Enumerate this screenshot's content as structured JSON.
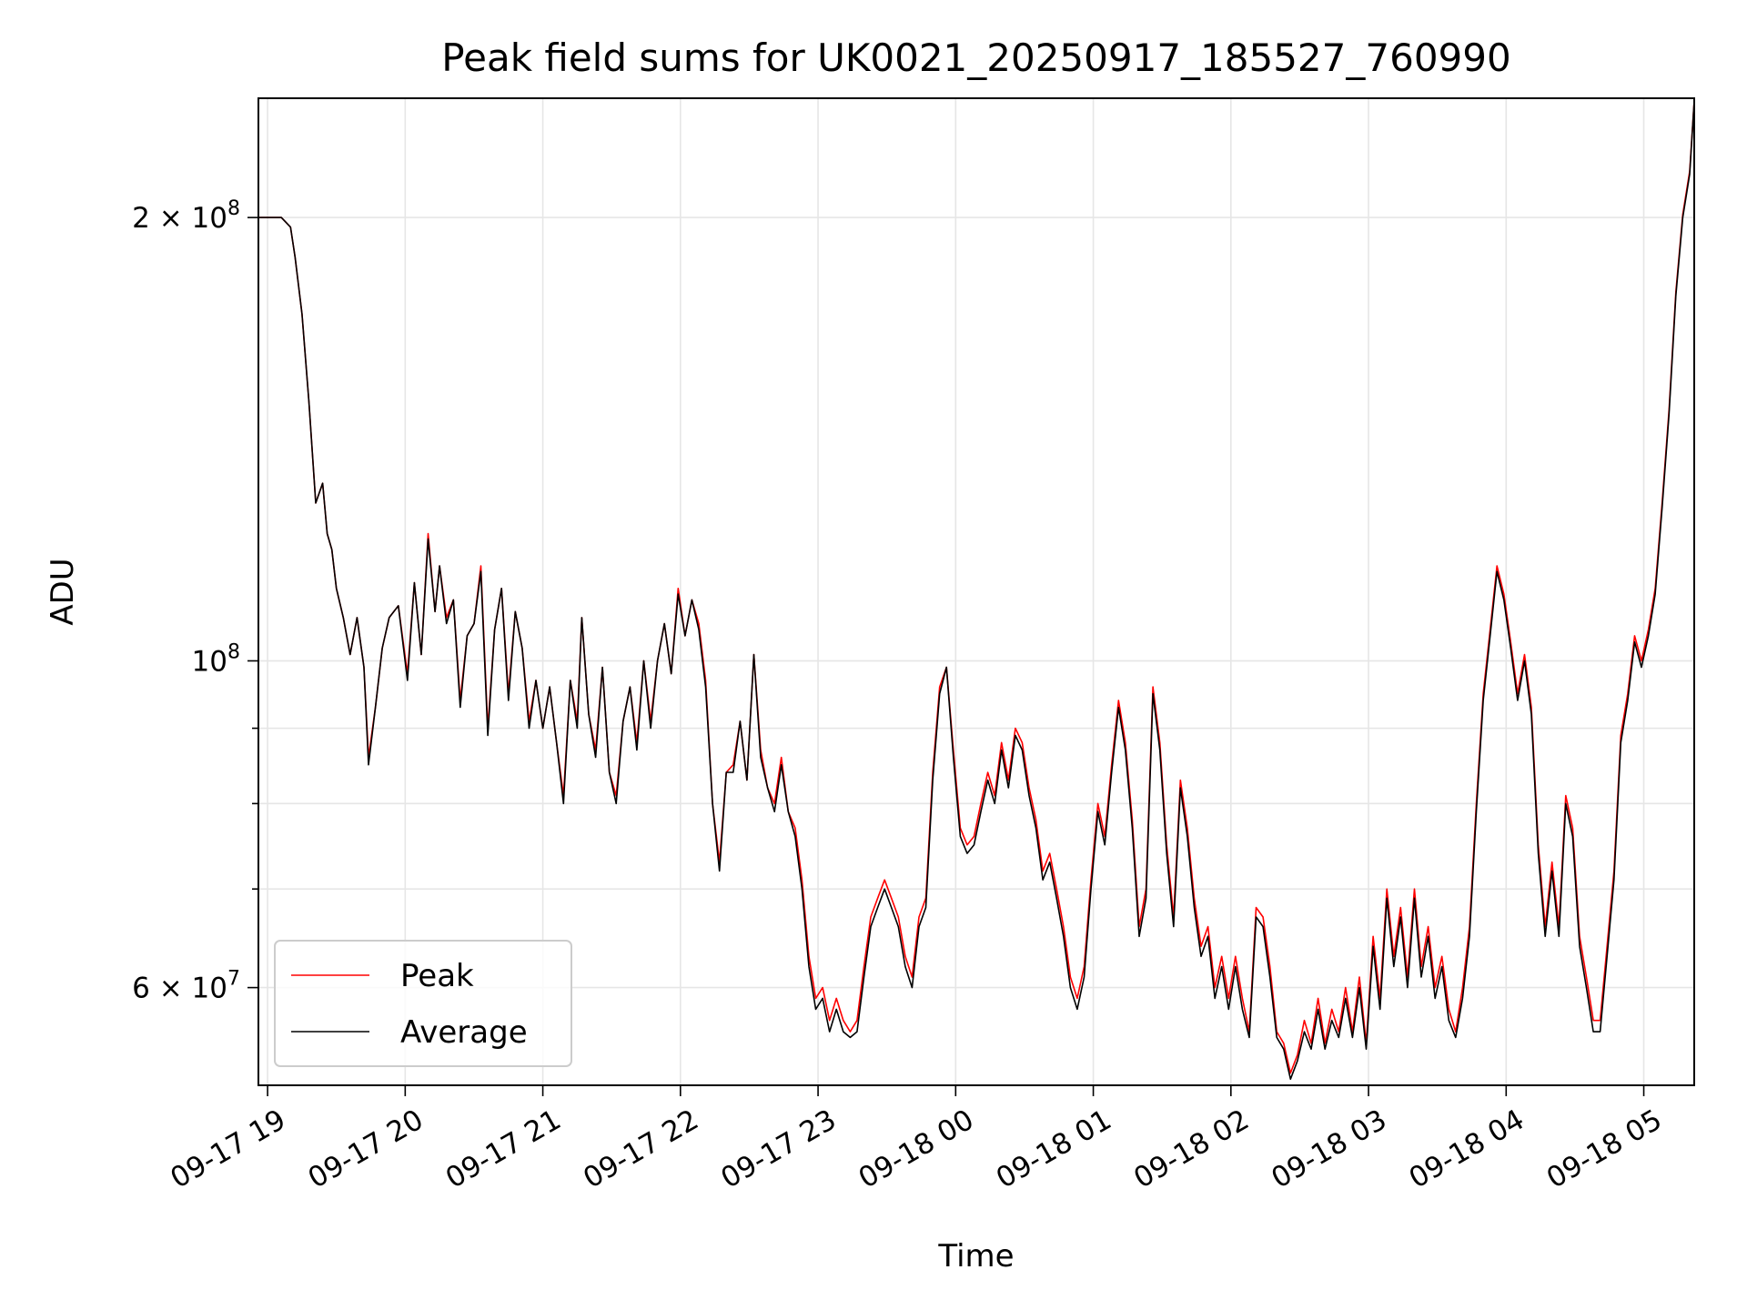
{
  "chart_data": {
    "type": "line",
    "title": "Peak field sums for UK0021_20250917_185527_760990",
    "xlabel": "Time",
    "ylabel": "ADU",
    "x_range": [
      "2025-09-17 18:56",
      "2025-09-18 05:22"
    ],
    "y_scale": "log",
    "ylim": [
      51500000,
      241000000
    ],
    "grid": true,
    "legend_position": "lower-left",
    "x_ticks": [
      "09-17 19",
      "09-17 20",
      "09-17 21",
      "09-17 22",
      "09-17 23",
      "09-18 00",
      "09-18 01",
      "09-18 02",
      "09-18 03",
      "09-18 04",
      "09-18 05"
    ],
    "x_tick_times": [
      "2025-09-17 19:00",
      "2025-09-17 20:00",
      "2025-09-17 21:00",
      "2025-09-17 22:00",
      "2025-09-17 23:00",
      "2025-09-18 00:00",
      "2025-09-18 01:00",
      "2025-09-18 02:00",
      "2025-09-18 03:00",
      "2025-09-18 04:00",
      "2025-09-18 05:00"
    ],
    "y_ticks": [
      {
        "value": 200000000,
        "mantissa": "2",
        "exponent": "8"
      },
      {
        "value": 100000000,
        "mantissa": "",
        "exponent": "8"
      },
      {
        "value": 60000000,
        "mantissa": "6",
        "exponent": "7"
      }
    ],
    "y_minor_ticks": [
      70000000,
      80000000,
      90000000
    ],
    "x": [
      "2025-09-17 18:56",
      "2025-09-17 19:06",
      "2025-09-17 19:10",
      "2025-09-17 19:12",
      "2025-09-17 19:15",
      "2025-09-17 19:18",
      "2025-09-17 19:21",
      "2025-09-17 19:24",
      "2025-09-17 19:26",
      "2025-09-17 19:28",
      "2025-09-17 19:30",
      "2025-09-17 19:33",
      "2025-09-17 19:36",
      "2025-09-17 19:39",
      "2025-09-17 19:42",
      "2025-09-17 19:44",
      "2025-09-17 19:47",
      "2025-09-17 19:50",
      "2025-09-17 19:53",
      "2025-09-17 19:57",
      "2025-09-17 20:01",
      "2025-09-17 20:04",
      "2025-09-17 20:07",
      "2025-09-17 20:10",
      "2025-09-17 20:13",
      "2025-09-17 20:15",
      "2025-09-17 20:18",
      "2025-09-17 20:21",
      "2025-09-17 20:24",
      "2025-09-17 20:27",
      "2025-09-17 20:30",
      "2025-09-17 20:33",
      "2025-09-17 20:36",
      "2025-09-17 20:39",
      "2025-09-17 20:42",
      "2025-09-17 20:45",
      "2025-09-17 20:48",
      "2025-09-17 20:51",
      "2025-09-17 20:54",
      "2025-09-17 20:57",
      "2025-09-17 21:00",
      "2025-09-17 21:03",
      "2025-09-17 21:06",
      "2025-09-17 21:09",
      "2025-09-17 21:12",
      "2025-09-17 21:15",
      "2025-09-17 21:17",
      "2025-09-17 21:20",
      "2025-09-17 21:23",
      "2025-09-17 21:26",
      "2025-09-17 21:29",
      "2025-09-17 21:32",
      "2025-09-17 21:35",
      "2025-09-17 21:38",
      "2025-09-17 21:41",
      "2025-09-17 21:44",
      "2025-09-17 21:47",
      "2025-09-17 21:50",
      "2025-09-17 21:53",
      "2025-09-17 21:56",
      "2025-09-17 21:59",
      "2025-09-17 22:02",
      "2025-09-17 22:05",
      "2025-09-17 22:08",
      "2025-09-17 22:11",
      "2025-09-17 22:14",
      "2025-09-17 22:17",
      "2025-09-17 22:20",
      "2025-09-17 22:23",
      "2025-09-17 22:26",
      "2025-09-17 22:29",
      "2025-09-17 22:32",
      "2025-09-17 22:35",
      "2025-09-17 22:38",
      "2025-09-17 22:41",
      "2025-09-17 22:44",
      "2025-09-17 22:47",
      "2025-09-17 22:50",
      "2025-09-17 22:53",
      "2025-09-17 22:56",
      "2025-09-17 22:59",
      "2025-09-17 23:02",
      "2025-09-17 23:05",
      "2025-09-17 23:08",
      "2025-09-17 23:11",
      "2025-09-17 23:14",
      "2025-09-17 23:17",
      "2025-09-17 23:20",
      "2025-09-17 23:23",
      "2025-09-17 23:26",
      "2025-09-17 23:29",
      "2025-09-17 23:32",
      "2025-09-17 23:35",
      "2025-09-17 23:38",
      "2025-09-17 23:41",
      "2025-09-17 23:44",
      "2025-09-17 23:47",
      "2025-09-17 23:50",
      "2025-09-17 23:53",
      "2025-09-17 23:56",
      "2025-09-17 23:59",
      "2025-09-18 00:02",
      "2025-09-18 00:05",
      "2025-09-18 00:08",
      "2025-09-18 00:11",
      "2025-09-18 00:14",
      "2025-09-18 00:17",
      "2025-09-18 00:20",
      "2025-09-18 00:23",
      "2025-09-18 00:26",
      "2025-09-18 00:29",
      "2025-09-18 00:32",
      "2025-09-18 00:35",
      "2025-09-18 00:38",
      "2025-09-18 00:41",
      "2025-09-18 00:44",
      "2025-09-18 00:47",
      "2025-09-18 00:50",
      "2025-09-18 00:53",
      "2025-09-18 00:56",
      "2025-09-18 00:59",
      "2025-09-18 01:02",
      "2025-09-18 01:05",
      "2025-09-18 01:08",
      "2025-09-18 01:11",
      "2025-09-18 01:14",
      "2025-09-18 01:17",
      "2025-09-18 01:20",
      "2025-09-18 01:23",
      "2025-09-18 01:26",
      "2025-09-18 01:29",
      "2025-09-18 01:32",
      "2025-09-18 01:35",
      "2025-09-18 01:38",
      "2025-09-18 01:41",
      "2025-09-18 01:44",
      "2025-09-18 01:47",
      "2025-09-18 01:50",
      "2025-09-18 01:53",
      "2025-09-18 01:56",
      "2025-09-18 01:59",
      "2025-09-18 02:02",
      "2025-09-18 02:05",
      "2025-09-18 02:08",
      "2025-09-18 02:11",
      "2025-09-18 02:14",
      "2025-09-18 02:17",
      "2025-09-18 02:20",
      "2025-09-18 02:23",
      "2025-09-18 02:26",
      "2025-09-18 02:29",
      "2025-09-18 02:32",
      "2025-09-18 02:35",
      "2025-09-18 02:38",
      "2025-09-18 02:41",
      "2025-09-18 02:44",
      "2025-09-18 02:47",
      "2025-09-18 02:50",
      "2025-09-18 02:53",
      "2025-09-18 02:56",
      "2025-09-18 02:59",
      "2025-09-18 03:02",
      "2025-09-18 03:05",
      "2025-09-18 03:08",
      "2025-09-18 03:11",
      "2025-09-18 03:14",
      "2025-09-18 03:17",
      "2025-09-18 03:20",
      "2025-09-18 03:23",
      "2025-09-18 03:26",
      "2025-09-18 03:29",
      "2025-09-18 03:32",
      "2025-09-18 03:35",
      "2025-09-18 03:38",
      "2025-09-18 03:41",
      "2025-09-18 03:44",
      "2025-09-18 03:47",
      "2025-09-18 03:50",
      "2025-09-18 03:53",
      "2025-09-18 03:56",
      "2025-09-18 03:59",
      "2025-09-18 04:02",
      "2025-09-18 04:05",
      "2025-09-18 04:08",
      "2025-09-18 04:11",
      "2025-09-18 04:14",
      "2025-09-18 04:17",
      "2025-09-18 04:20",
      "2025-09-18 04:23",
      "2025-09-18 04:26",
      "2025-09-18 04:29",
      "2025-09-18 04:32",
      "2025-09-18 04:35",
      "2025-09-18 04:38",
      "2025-09-18 04:41",
      "2025-09-18 04:44",
      "2025-09-18 04:47",
      "2025-09-18 04:50",
      "2025-09-18 04:53",
      "2025-09-18 04:56",
      "2025-09-18 04:59",
      "2025-09-18 05:02",
      "2025-09-18 05:05",
      "2025-09-18 05:08",
      "2025-09-18 05:11",
      "2025-09-18 05:14",
      "2025-09-18 05:17",
      "2025-09-18 05:20",
      "2025-09-18 05:22"
    ],
    "series": [
      {
        "name": "Peak",
        "color": "#ff0000",
        "values": [
          200000000,
          200000000,
          197000000,
          188000000,
          172000000,
          150000000,
          128000000,
          132000000,
          122000000,
          119000000,
          112000000,
          107000000,
          101000000,
          107000000,
          99000000,
          86000000,
          93000000,
          102000000,
          107000000,
          109000000,
          98000000,
          113000000,
          101000000,
          122000000,
          108000000,
          116000000,
          107000000,
          110000000,
          94000000,
          104000000,
          106000000,
          116000000,
          90000000,
          105000000,
          112000000,
          95000000,
          108000000,
          102000000,
          91000000,
          97000000,
          90000000,
          96000000,
          88000000,
          81000000,
          97000000,
          91000000,
          107000000,
          92000000,
          87000000,
          99000000,
          84000000,
          81000000,
          91000000,
          96000000,
          88000000,
          100000000,
          91000000,
          100000000,
          106000000,
          98000000,
          112000000,
          104000000,
          110000000,
          106000000,
          97000000,
          80000000,
          73000000,
          84000000,
          85000000,
          91000000,
          83000000,
          101000000,
          87000000,
          82000000,
          80000000,
          86000000,
          79000000,
          77000000,
          71000000,
          63000000,
          59000000,
          60000000,
          57000000,
          59000000,
          57000000,
          56000000,
          57000000,
          62000000,
          67000000,
          69000000,
          71000000,
          69000000,
          67000000,
          63000000,
          61000000,
          67000000,
          69000000,
          84000000,
          96000000,
          99000000,
          87000000,
          77000000,
          75000000,
          76000000,
          80000000,
          84000000,
          81000000,
          88000000,
          83000000,
          90000000,
          88000000,
          82000000,
          78000000,
          72000000,
          74000000,
          70000000,
          66000000,
          61000000,
          59000000,
          62000000,
          71000000,
          80000000,
          76000000,
          85000000,
          94000000,
          88000000,
          78000000,
          66000000,
          70000000,
          96000000,
          88000000,
          75000000,
          67000000,
          83000000,
          77000000,
          69000000,
          64000000,
          66000000,
          60000000,
          63000000,
          59000000,
          63000000,
          59000000,
          56000000,
          68000000,
          67000000,
          62000000,
          56000000,
          55000000,
          52500000,
          54000000,
          57000000,
          55000000,
          59000000,
          55000000,
          58000000,
          56000000,
          60000000,
          56000000,
          61000000,
          55000000,
          65000000,
          59000000,
          70000000,
          63000000,
          68000000,
          61000000,
          70000000,
          62000000,
          66000000,
          60000000,
          63000000,
          58000000,
          56000000,
          60000000,
          66000000,
          80000000,
          95000000,
          105000000,
          116000000,
          111000000,
          103000000,
          95000000,
          101000000,
          93000000,
          75000000,
          66000000,
          73000000,
          66000000,
          81000000,
          77000000,
          65000000,
          61000000,
          57000000,
          57000000,
          64000000,
          72000000,
          89000000,
          95000000,
          104000000,
          100000000,
          105000000,
          112000000,
          128000000,
          148000000,
          178000000,
          201000000,
          215000000,
          240000000
        ]
      },
      {
        "name": "Average",
        "color": "#000000",
        "values": [
          200000000,
          200000000,
          197000000,
          188000000,
          172000000,
          150000000,
          128000000,
          132000000,
          122000000,
          119000000,
          112000000,
          107000000,
          101000000,
          107000000,
          99000000,
          85000000,
          93000000,
          102000000,
          107000000,
          109000000,
          97000000,
          113000000,
          101000000,
          121000000,
          108000000,
          116000000,
          106000000,
          110000000,
          93000000,
          104000000,
          106000000,
          115000000,
          89000000,
          105000000,
          112000000,
          94000000,
          108000000,
          102000000,
          90000000,
          97000000,
          90000000,
          96000000,
          88000000,
          80000000,
          97000000,
          90000000,
          107000000,
          92000000,
          86000000,
          99000000,
          84000000,
          80000000,
          91000000,
          96000000,
          87000000,
          100000000,
          90000000,
          100000000,
          106000000,
          98000000,
          111000000,
          104000000,
          110000000,
          105000000,
          96000000,
          80000000,
          72000000,
          84000000,
          84000000,
          91000000,
          83000000,
          101000000,
          86000000,
          82000000,
          79000000,
          85000000,
          79000000,
          76000000,
          70000000,
          62000000,
          58000000,
          59000000,
          56000000,
          58000000,
          56000000,
          55500000,
          56000000,
          61000000,
          66000000,
          68000000,
          70000000,
          68000000,
          66000000,
          62000000,
          60000000,
          66000000,
          68000000,
          83000000,
          95000000,
          99000000,
          86000000,
          76000000,
          74000000,
          75000000,
          79000000,
          83000000,
          80000000,
          87000000,
          82000000,
          89000000,
          87000000,
          81000000,
          77000000,
          71000000,
          73000000,
          69000000,
          65000000,
          60000000,
          58000000,
          61000000,
          70000000,
          79000000,
          75000000,
          84000000,
          93000000,
          87000000,
          77000000,
          65000000,
          69000000,
          95000000,
          87000000,
          74000000,
          66000000,
          82000000,
          76000000,
          68000000,
          63000000,
          65000000,
          59000000,
          62000000,
          58000000,
          62000000,
          58000000,
          55500000,
          67000000,
          66000000,
          61000000,
          55500000,
          54500000,
          52000000,
          53500000,
          56000000,
          54500000,
          58000000,
          54500000,
          57000000,
          55500000,
          59000000,
          55500000,
          60000000,
          54500000,
          64000000,
          58000000,
          69000000,
          62000000,
          67000000,
          60000000,
          69000000,
          61000000,
          65000000,
          59000000,
          62000000,
          57000000,
          55500000,
          59000000,
          65000000,
          79000000,
          94000000,
          104000000,
          115000000,
          110000000,
          102000000,
          94000000,
          100000000,
          92000000,
          74000000,
          65000000,
          72000000,
          65000000,
          80000000,
          76000000,
          64000000,
          60000000,
          56000000,
          56000000,
          63000000,
          71000000,
          88000000,
          94000000,
          103000000,
          99000000,
          104000000,
          111000000,
          127000000,
          147000000,
          177000000,
          200000000,
          214000000,
          240000000
        ]
      }
    ]
  }
}
